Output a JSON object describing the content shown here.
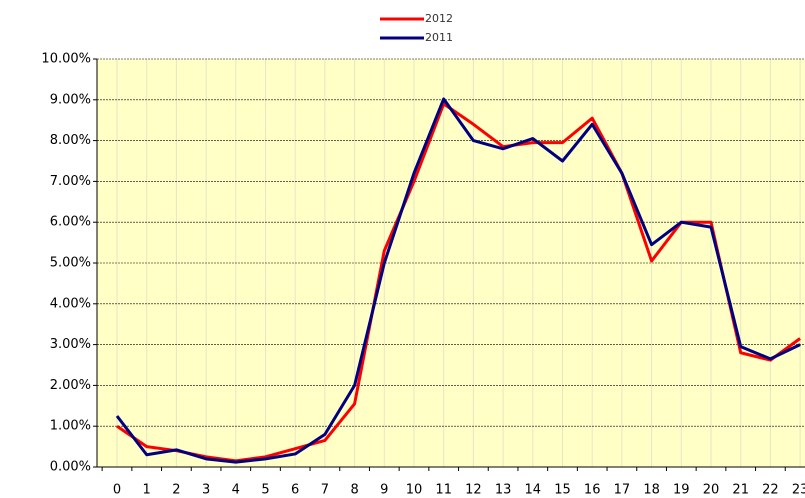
{
  "chart_data": {
    "type": "line",
    "categories": [
      "0",
      "1",
      "2",
      "3",
      "4",
      "5",
      "6",
      "7",
      "8",
      "9",
      "10",
      "11",
      "12",
      "13",
      "14",
      "15",
      "16",
      "17",
      "18",
      "19",
      "20",
      "21",
      "22",
      "23"
    ],
    "series": [
      {
        "name": "2012",
        "color": "#ff0000",
        "values": [
          1.0,
          0.5,
          0.4,
          0.25,
          0.15,
          0.25,
          0.45,
          0.65,
          1.55,
          5.3,
          7.0,
          8.9,
          8.4,
          7.85,
          7.95,
          7.95,
          8.55,
          7.2,
          5.05,
          6.0,
          6.0,
          2.8,
          2.62,
          3.15
        ]
      },
      {
        "name": "2011",
        "color": "#000080",
        "values": [
          1.25,
          0.3,
          0.42,
          0.2,
          0.12,
          0.2,
          0.32,
          0.8,
          2.0,
          5.0,
          7.2,
          9.02,
          8.0,
          7.8,
          8.05,
          7.5,
          8.4,
          7.2,
          5.45,
          6.0,
          5.88,
          2.95,
          2.65,
          3.0
        ]
      }
    ],
    "ylim": [
      0,
      10
    ],
    "yticks": [
      {
        "value": 0,
        "label": "0.00%"
      },
      {
        "value": 1,
        "label": "1.00%"
      },
      {
        "value": 2,
        "label": "2.00%"
      },
      {
        "value": 3,
        "label": "3.00%"
      },
      {
        "value": 4,
        "label": "4.00%"
      },
      {
        "value": 5,
        "label": "5.00%"
      },
      {
        "value": 6,
        "label": "6.00%"
      },
      {
        "value": 7,
        "label": "7.00%"
      },
      {
        "value": 8,
        "label": "8.00%"
      },
      {
        "value": 9,
        "label": "9.00%"
      },
      {
        "value": 10,
        "label": "10.00%"
      }
    ],
    "grid": true,
    "legend": "top"
  }
}
